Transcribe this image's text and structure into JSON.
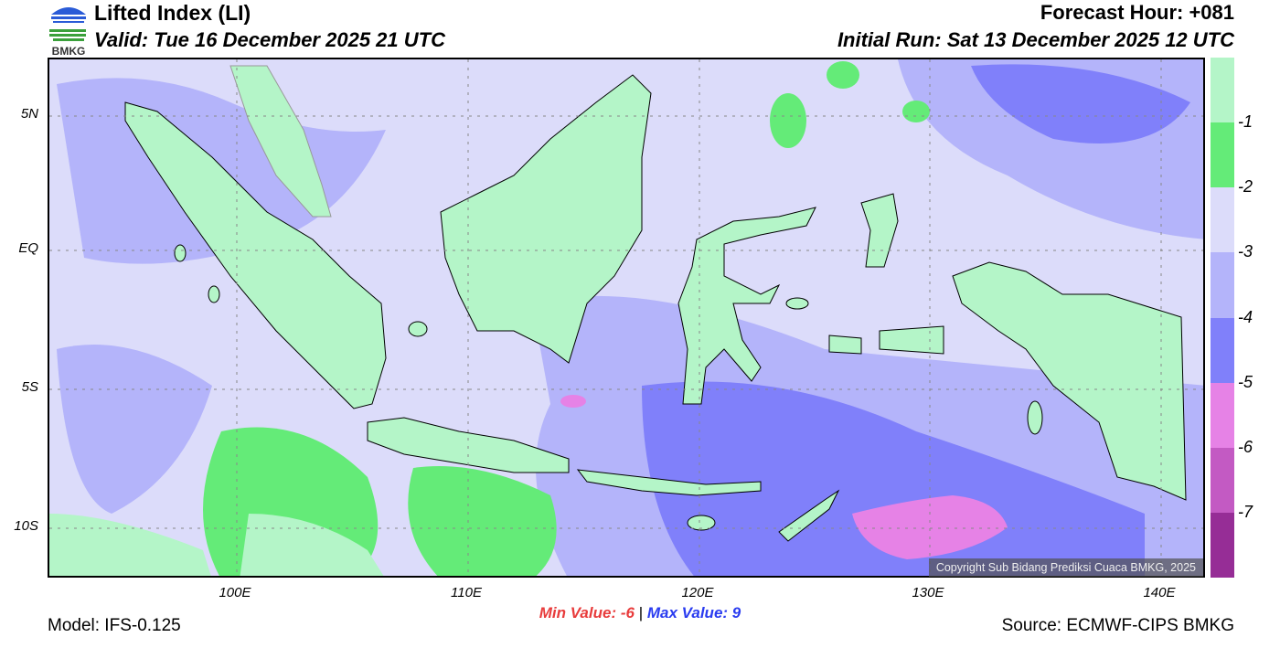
{
  "header": {
    "title": "Lifted Index (LI)",
    "valid": "Valid: Tue 16 December 2025 21 UTC",
    "forecast_hour": "Forecast Hour: +081",
    "initial_run": "Initial Run: Sat 13 December 2025 12 UTC",
    "logo_text": "BMKG"
  },
  "axes": {
    "lat_labels": [
      "5N",
      "EQ",
      "5S",
      "10S"
    ],
    "lon_labels": [
      "100E",
      "110E",
      "120E",
      "130E",
      "140E"
    ]
  },
  "legend": {
    "colors": [
      "#b4f5c8",
      "#64eb78",
      "#dcdcfa",
      "#b4b4fa",
      "#8080fa",
      "#e682e6",
      "#c35ac3",
      "#962d96"
    ],
    "labels": [
      "-1",
      "-2",
      "-3",
      "-4",
      "-5",
      "-6",
      "-7"
    ]
  },
  "footer": {
    "min_label": "Min Value:",
    "min_value": "-6",
    "separator": "|",
    "max_label": "Max Value:",
    "max_value": "9",
    "model": "Model: IFS-0.125",
    "source": "Source: ECMWF-CIPS BMKG",
    "copyright": "Copyright Sub Bidang Prediksi Cuaca BMKG, 2025"
  }
}
